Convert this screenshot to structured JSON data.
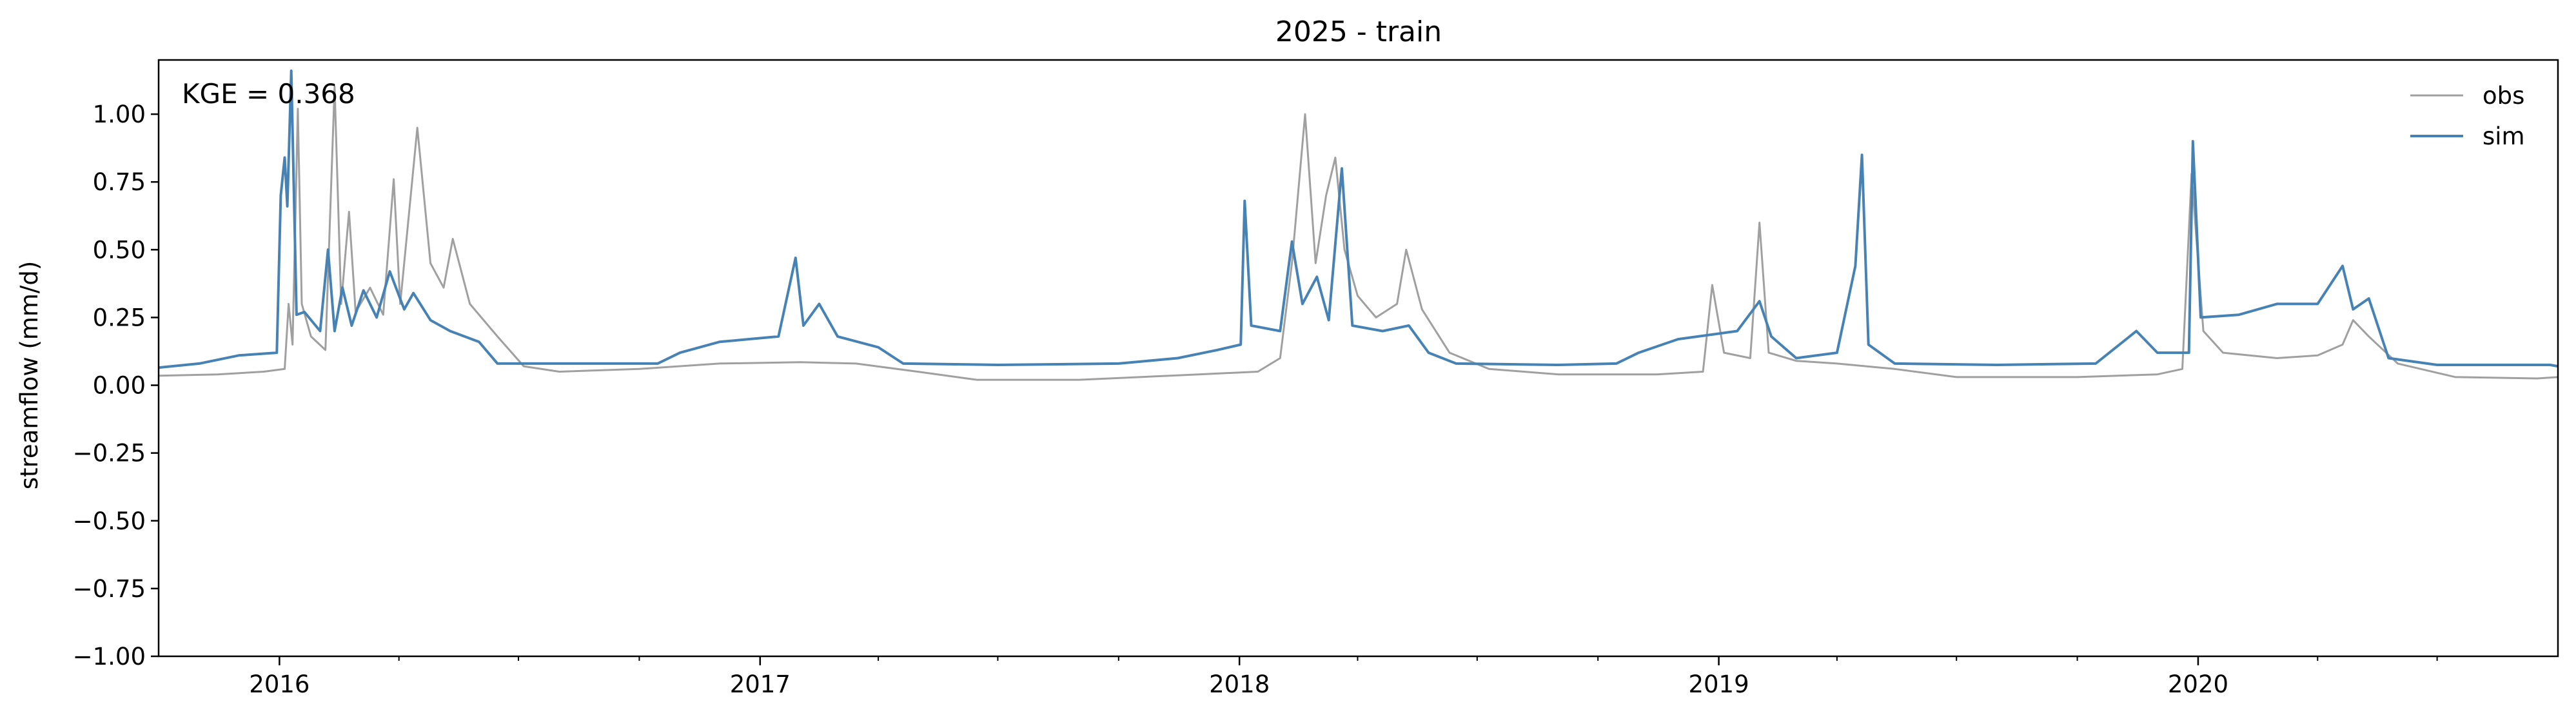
{
  "chart_data": {
    "type": "line",
    "title": "2025 - train",
    "xlabel": "",
    "ylabel": "streamflow (mm/d)",
    "ylim": [
      -1.0,
      1.2
    ],
    "xlim": [
      "2015-10-01",
      "2020-10-01"
    ],
    "yticks": [
      -1.0,
      -0.75,
      -0.5,
      -0.25,
      0.0,
      0.25,
      0.5,
      0.75,
      1.0
    ],
    "ytick_labels": [
      "−1.00",
      "−0.75",
      "−0.50",
      "−0.25",
      "0.00",
      "0.25",
      "0.50",
      "0.75",
      "1.00"
    ],
    "xticks": [
      "2016-01-01",
      "2017-01-01",
      "2018-01-01",
      "2019-01-01",
      "2020-01-01"
    ],
    "xtick_labels": [
      "2016",
      "2017",
      "2018",
      "2019",
      "2020"
    ],
    "grid": false,
    "legend": {
      "position": "top-right"
    },
    "annotation": "KGE = 0.368",
    "series": [
      {
        "name": "obs",
        "color": "#a0a0a0",
        "points": [
          [
            "2015-10-01",
            0.035
          ],
          [
            "2015-11-15",
            0.04
          ],
          [
            "2015-12-20",
            0.05
          ],
          [
            "2016-01-05",
            0.06
          ],
          [
            "2016-01-08",
            0.3
          ],
          [
            "2016-01-11",
            0.15
          ],
          [
            "2016-01-15",
            1.02
          ],
          [
            "2016-01-18",
            0.3
          ],
          [
            "2016-01-25",
            0.18
          ],
          [
            "2016-02-05",
            0.13
          ],
          [
            "2016-02-12",
            1.1
          ],
          [
            "2016-02-17",
            0.3
          ],
          [
            "2016-02-23",
            0.64
          ],
          [
            "2016-02-28",
            0.27
          ],
          [
            "2016-03-10",
            0.36
          ],
          [
            "2016-03-20",
            0.26
          ],
          [
            "2016-03-28",
            0.76
          ],
          [
            "2016-04-02",
            0.3
          ],
          [
            "2016-04-15",
            0.95
          ],
          [
            "2016-04-25",
            0.45
          ],
          [
            "2016-05-05",
            0.36
          ],
          [
            "2016-05-12",
            0.54
          ],
          [
            "2016-05-25",
            0.3
          ],
          [
            "2016-06-15",
            0.18
          ],
          [
            "2016-07-05",
            0.07
          ],
          [
            "2016-08-01",
            0.05
          ],
          [
            "2016-10-01",
            0.06
          ],
          [
            "2016-12-01",
            0.08
          ],
          [
            "2017-02-01",
            0.085
          ],
          [
            "2017-03-15",
            0.08
          ],
          [
            "2017-05-01",
            0.05
          ],
          [
            "2017-06-15",
            0.02
          ],
          [
            "2017-09-01",
            0.02
          ],
          [
            "2017-12-01",
            0.04
          ],
          [
            "2018-01-15",
            0.05
          ],
          [
            "2018-02-01",
            0.1
          ],
          [
            "2018-02-10",
            0.45
          ],
          [
            "2018-02-20",
            1.0
          ],
          [
            "2018-02-28",
            0.45
          ],
          [
            "2018-03-08",
            0.7
          ],
          [
            "2018-03-15",
            0.84
          ],
          [
            "2018-03-22",
            0.5
          ],
          [
            "2018-04-01",
            0.33
          ],
          [
            "2018-04-15",
            0.25
          ],
          [
            "2018-05-01",
            0.3
          ],
          [
            "2018-05-08",
            0.5
          ],
          [
            "2018-05-20",
            0.28
          ],
          [
            "2018-06-10",
            0.12
          ],
          [
            "2018-07-10",
            0.06
          ],
          [
            "2018-09-01",
            0.04
          ],
          [
            "2018-11-15",
            0.04
          ],
          [
            "2018-12-20",
            0.05
          ],
          [
            "2018-12-27",
            0.37
          ],
          [
            "2019-01-05",
            0.12
          ],
          [
            "2019-01-25",
            0.1
          ],
          [
            "2019-02-01",
            0.6
          ],
          [
            "2019-02-08",
            0.12
          ],
          [
            "2019-03-01",
            0.09
          ],
          [
            "2019-04-01",
            0.08
          ],
          [
            "2019-05-15",
            0.06
          ],
          [
            "2019-07-01",
            0.03
          ],
          [
            "2019-10-01",
            0.03
          ],
          [
            "2019-12-01",
            0.04
          ],
          [
            "2019-12-20",
            0.06
          ],
          [
            "2019-12-27",
            0.78
          ],
          [
            "2020-01-05",
            0.2
          ],
          [
            "2020-01-20",
            0.12
          ],
          [
            "2020-03-01",
            0.1
          ],
          [
            "2020-04-01",
            0.11
          ],
          [
            "2020-04-20",
            0.15
          ],
          [
            "2020-04-28",
            0.24
          ],
          [
            "2020-05-10",
            0.18
          ],
          [
            "2020-06-01",
            0.08
          ],
          [
            "2020-07-15",
            0.03
          ],
          [
            "2020-09-15",
            0.025
          ],
          [
            "2020-10-01",
            0.03
          ]
        ]
      },
      {
        "name": "sim",
        "color": "#4682b4",
        "points": [
          [
            "2015-10-01",
            0.065
          ],
          [
            "2015-11-01",
            0.08
          ],
          [
            "2015-12-01",
            0.11
          ],
          [
            "2015-12-30",
            0.12
          ],
          [
            "2016-01-02",
            0.7
          ],
          [
            "2016-01-05",
            0.84
          ],
          [
            "2016-01-07",
            0.66
          ],
          [
            "2016-01-10",
            1.16
          ],
          [
            "2016-01-14",
            0.26
          ],
          [
            "2016-01-20",
            0.27
          ],
          [
            "2016-02-01",
            0.2
          ],
          [
            "2016-02-07",
            0.5
          ],
          [
            "2016-02-12",
            0.2
          ],
          [
            "2016-02-18",
            0.36
          ],
          [
            "2016-02-25",
            0.22
          ],
          [
            "2016-03-05",
            0.35
          ],
          [
            "2016-03-15",
            0.25
          ],
          [
            "2016-03-25",
            0.42
          ],
          [
            "2016-04-05",
            0.28
          ],
          [
            "2016-04-12",
            0.34
          ],
          [
            "2016-04-25",
            0.24
          ],
          [
            "2016-05-10",
            0.2
          ],
          [
            "2016-06-01",
            0.16
          ],
          [
            "2016-06-15",
            0.08
          ],
          [
            "2016-08-01",
            0.08
          ],
          [
            "2016-10-15",
            0.08
          ],
          [
            "2016-11-01",
            0.12
          ],
          [
            "2016-12-01",
            0.16
          ],
          [
            "2017-01-15",
            0.18
          ],
          [
            "2017-01-28",
            0.47
          ],
          [
            "2017-02-03",
            0.22
          ],
          [
            "2017-02-15",
            0.3
          ],
          [
            "2017-03-01",
            0.18
          ],
          [
            "2017-04-01",
            0.14
          ],
          [
            "2017-04-20",
            0.08
          ],
          [
            "2017-07-01",
            0.075
          ],
          [
            "2017-10-01",
            0.08
          ],
          [
            "2017-11-15",
            0.1
          ],
          [
            "2017-12-15",
            0.13
          ],
          [
            "2018-01-02",
            0.15
          ],
          [
            "2018-01-05",
            0.68
          ],
          [
            "2018-01-10",
            0.22
          ],
          [
            "2018-02-01",
            0.2
          ],
          [
            "2018-02-10",
            0.53
          ],
          [
            "2018-02-18",
            0.3
          ],
          [
            "2018-03-01",
            0.4
          ],
          [
            "2018-03-10",
            0.24
          ],
          [
            "2018-03-20",
            0.8
          ],
          [
            "2018-03-28",
            0.22
          ],
          [
            "2018-04-20",
            0.2
          ],
          [
            "2018-05-10",
            0.22
          ],
          [
            "2018-05-25",
            0.12
          ],
          [
            "2018-06-15",
            0.08
          ],
          [
            "2018-09-01",
            0.075
          ],
          [
            "2018-10-15",
            0.08
          ],
          [
            "2018-11-01",
            0.12
          ],
          [
            "2018-12-01",
            0.17
          ],
          [
            "2019-01-15",
            0.2
          ],
          [
            "2019-02-01",
            0.31
          ],
          [
            "2019-02-10",
            0.18
          ],
          [
            "2019-03-01",
            0.1
          ],
          [
            "2019-04-01",
            0.12
          ],
          [
            "2019-04-15",
            0.44
          ],
          [
            "2019-04-20",
            0.85
          ],
          [
            "2019-04-25",
            0.15
          ],
          [
            "2019-05-15",
            0.08
          ],
          [
            "2019-08-01",
            0.075
          ],
          [
            "2019-10-15",
            0.08
          ],
          [
            "2019-11-15",
            0.2
          ],
          [
            "2019-12-01",
            0.12
          ],
          [
            "2019-12-25",
            0.12
          ],
          [
            "2019-12-28",
            0.9
          ],
          [
            "2020-01-03",
            0.25
          ],
          [
            "2020-02-01",
            0.26
          ],
          [
            "2020-03-01",
            0.3
          ],
          [
            "2020-04-01",
            0.3
          ],
          [
            "2020-04-20",
            0.44
          ],
          [
            "2020-04-28",
            0.28
          ],
          [
            "2020-05-10",
            0.32
          ],
          [
            "2020-05-25",
            0.1
          ],
          [
            "2020-07-01",
            0.075
          ],
          [
            "2020-09-25",
            0.075
          ],
          [
            "2020-10-01",
            0.07
          ]
        ]
      }
    ]
  }
}
